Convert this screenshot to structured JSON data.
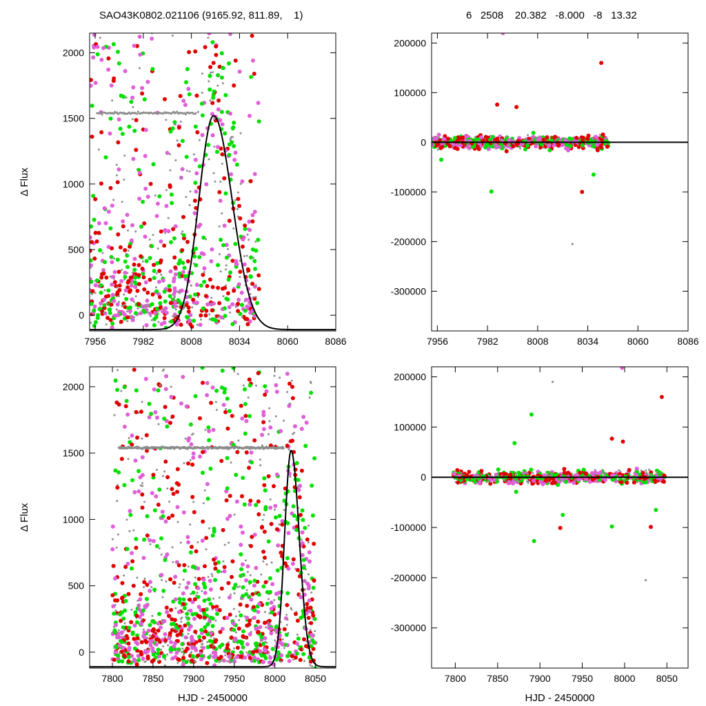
{
  "header": {
    "left": "SAO43K0802.021106 (9165.92, 811.89,    1)",
    "right": "6   2508    20.382   -8.000   -8   13.32"
  },
  "colors": {
    "gray": "#8c8c8c",
    "red": "#e00000",
    "green": "#00e000",
    "magenta": "#e060d8",
    "model": "#000000"
  },
  "chart_data": [
    {
      "type": "scatter",
      "panel": "top-left",
      "xlabel": "",
      "ylabel": "Δ Flux",
      "xlim": [
        7953,
        8086
      ],
      "ylim": [
        -120,
        2150
      ],
      "xticks": [
        7956,
        7982,
        8008,
        8034,
        8060,
        8086
      ],
      "yticks": [
        0,
        500,
        1000,
        1500,
        2000
      ],
      "data_xrange": [
        7953,
        8045
      ],
      "baseline_gray": {
        "y": 1540,
        "x": [
          7957,
          8011
        ]
      },
      "model": {
        "shape": "skewed peak",
        "peak_x": 8020,
        "peak_y": 1630,
        "rise_width": 8,
        "decay_width": 10
      }
    },
    {
      "type": "scatter",
      "panel": "top-right",
      "xlabel": "",
      "ylabel": "",
      "xlim": [
        7953,
        8086
      ],
      "ylim": [
        -380000,
        220000
      ],
      "xticks": [
        7956,
        7982,
        8008,
        8034,
        8060,
        8086
      ],
      "yticks": [
        200000,
        100000,
        0,
        -100000,
        -200000,
        -300000
      ],
      "data_xrange": [
        7953,
        8045
      ],
      "outliers": [
        {
          "x": 7990,
          "y": 220000,
          "color": "magenta"
        },
        {
          "x": 8041,
          "y": 160000,
          "color": "red"
        },
        {
          "x": 7987,
          "y": 76000,
          "color": "red"
        },
        {
          "x": 7997,
          "y": 71000,
          "color": "red"
        },
        {
          "x": 7984,
          "y": -99000,
          "color": "green"
        },
        {
          "x": 8031,
          "y": -100000,
          "color": "red"
        },
        {
          "x": 8037,
          "y": -65000,
          "color": "green"
        },
        {
          "x": 8026,
          "y": -205000,
          "color": "gray"
        },
        {
          "x": 7958,
          "y": -35000,
          "color": "green"
        }
      ],
      "model": {
        "shape": "flat",
        "y": 0
      }
    },
    {
      "type": "scatter",
      "panel": "bottom-left",
      "xlabel": "HJD - 2450000",
      "ylabel": "Δ Flux",
      "xlim": [
        7772,
        8075
      ],
      "ylim": [
        -120,
        2150
      ],
      "xticks": [
        7800,
        7850,
        7900,
        7950,
        8000,
        8050
      ],
      "yticks": [
        0,
        500,
        1000,
        1500,
        2000
      ],
      "data_xrange": [
        7800,
        8050
      ],
      "baseline_gray": {
        "y": 1540,
        "x": [
          7808,
          8011
        ]
      },
      "model": {
        "shape": "skewed peak",
        "peak_x": 8020,
        "peak_y": 1630,
        "rise_width": 8,
        "decay_width": 10
      }
    },
    {
      "type": "scatter",
      "panel": "bottom-right",
      "xlabel": "HJD - 2450000",
      "ylabel": "",
      "xlim": [
        7772,
        8075
      ],
      "ylim": [
        -380000,
        220000
      ],
      "xticks": [
        7800,
        7850,
        7900,
        7950,
        8000,
        8050
      ],
      "yticks": [
        200000,
        100000,
        0,
        -100000,
        -200000,
        -300000
      ],
      "data_xrange": [
        7798,
        8048
      ],
      "outliers": [
        {
          "x": 7997,
          "y": 218000,
          "color": "magenta"
        },
        {
          "x": 7915,
          "y": 190000,
          "color": "gray"
        },
        {
          "x": 8044,
          "y": 160000,
          "color": "red"
        },
        {
          "x": 7890,
          "y": 125000,
          "color": "green"
        },
        {
          "x": 7985,
          "y": 77000,
          "color": "red"
        },
        {
          "x": 7998,
          "y": 71000,
          "color": "red"
        },
        {
          "x": 7870,
          "y": 68000,
          "color": "green"
        },
        {
          "x": 7893,
          "y": -127000,
          "color": "green"
        },
        {
          "x": 7924,
          "y": -101000,
          "color": "red"
        },
        {
          "x": 8031,
          "y": -99000,
          "color": "red"
        },
        {
          "x": 7985,
          "y": -98000,
          "color": "green"
        },
        {
          "x": 7927,
          "y": -75000,
          "color": "green"
        },
        {
          "x": 8025,
          "y": -205000,
          "color": "gray"
        },
        {
          "x": 8037,
          "y": -65000,
          "color": "green"
        }
      ],
      "model": {
        "shape": "flat",
        "y": 0
      }
    }
  ]
}
